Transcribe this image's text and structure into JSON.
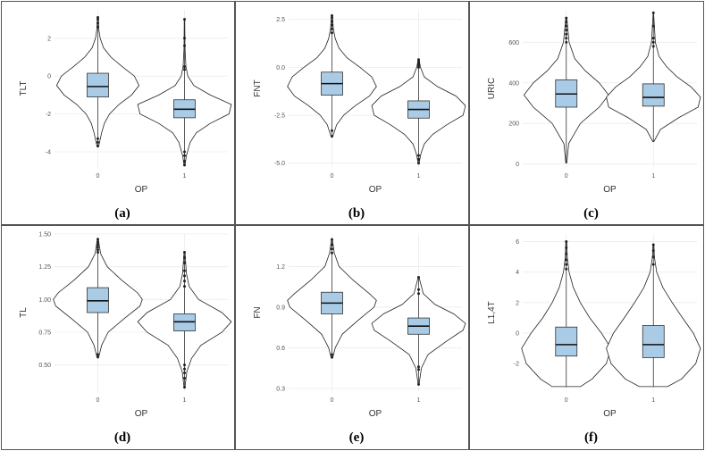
{
  "chart_data": [
    {
      "type": "violin+box",
      "panel_label": "(a)",
      "xlabel": "OP",
      "ylabel": "TLT",
      "ylim": [
        -4.8,
        3.5
      ],
      "yticks": [
        -4,
        -2,
        0,
        2
      ],
      "categories": [
        "0",
        "1"
      ],
      "groups": [
        {
          "category": "0",
          "min": -3.7,
          "q1": -1.1,
          "median": -0.55,
          "q3": 0.15,
          "max": 3.1,
          "outliers": [
            2.6,
            2.8,
            3.0,
            3.1,
            -3.3,
            -3.5,
            -3.7
          ],
          "density": [
            [
              -3.7,
              0.02
            ],
            [
              -3.0,
              0.08
            ],
            [
              -2.5,
              0.14
            ],
            [
              -2.0,
              0.25
            ],
            [
              -1.5,
              0.45
            ],
            [
              -1.0,
              0.72
            ],
            [
              -0.5,
              0.88
            ],
            [
              0.0,
              0.78
            ],
            [
              0.5,
              0.52
            ],
            [
              1.0,
              0.28
            ],
            [
              1.5,
              0.12
            ],
            [
              2.0,
              0.05
            ],
            [
              2.5,
              0.02
            ],
            [
              3.1,
              0.01
            ]
          ]
        },
        {
          "category": "1",
          "min": -4.7,
          "q1": -2.2,
          "median": -1.75,
          "q3": -1.25,
          "max": 3.0,
          "outliers": [
            3.0,
            2.0,
            1.6,
            0.5,
            0.35,
            -4.0,
            -4.2,
            -4.5,
            -4.7
          ],
          "density": [
            [
              -4.7,
              0.01
            ],
            [
              -4.2,
              0.04
            ],
            [
              -3.5,
              0.12
            ],
            [
              -3.0,
              0.25
            ],
            [
              -2.5,
              0.55
            ],
            [
              -2.0,
              0.95
            ],
            [
              -1.5,
              1.0
            ],
            [
              -1.0,
              0.55
            ],
            [
              -0.5,
              0.2
            ],
            [
              0.0,
              0.07
            ],
            [
              0.5,
              0.03
            ],
            [
              1.5,
              0.01
            ],
            [
              3.0,
              0.005
            ]
          ]
        }
      ]
    },
    {
      "type": "violin+box",
      "panel_label": "(b)",
      "xlabel": "OP",
      "ylabel": "FNT",
      "ylim": [
        -5.2,
        3.0
      ],
      "yticks": [
        2.5,
        0.0,
        -2.5,
        -5.0
      ],
      "ytick_labels": [
        "2.5",
        "0.0",
        "-2.5",
        "-5.0"
      ],
      "categories": [
        "0",
        "1"
      ],
      "groups": [
        {
          "category": "0",
          "min": -3.6,
          "q1": -1.45,
          "median": -0.85,
          "q3": -0.25,
          "max": 2.7,
          "outliers": [
            1.8,
            2.0,
            2.2,
            2.4,
            2.6,
            2.7,
            -3.3,
            -3.6
          ],
          "density": [
            [
              -3.6,
              0.02
            ],
            [
              -3.0,
              0.1
            ],
            [
              -2.5,
              0.25
            ],
            [
              -2.0,
              0.5
            ],
            [
              -1.5,
              0.8
            ],
            [
              -1.0,
              0.95
            ],
            [
              -0.5,
              0.85
            ],
            [
              0.0,
              0.6
            ],
            [
              0.5,
              0.32
            ],
            [
              1.0,
              0.15
            ],
            [
              1.5,
              0.07
            ],
            [
              2.0,
              0.03
            ],
            [
              2.7,
              0.01
            ]
          ]
        },
        {
          "category": "1",
          "min": -5.0,
          "q1": -2.65,
          "median": -2.2,
          "q3": -1.75,
          "max": 0.4,
          "outliers": [
            0.0,
            0.1,
            0.2,
            0.3,
            0.4,
            -4.6,
            -4.8,
            -5.0
          ],
          "density": [
            [
              -5.0,
              0.01
            ],
            [
              -4.5,
              0.05
            ],
            [
              -4.0,
              0.12
            ],
            [
              -3.5,
              0.3
            ],
            [
              -3.0,
              0.6
            ],
            [
              -2.5,
              0.95
            ],
            [
              -2.0,
              1.0
            ],
            [
              -1.5,
              0.8
            ],
            [
              -1.0,
              0.4
            ],
            [
              -0.5,
              0.12
            ],
            [
              0.0,
              0.04
            ],
            [
              0.4,
              0.01
            ]
          ]
        }
      ]
    },
    {
      "type": "violin+box",
      "panel_label": "(c)",
      "xlabel": "OP",
      "ylabel": "URIC",
      "ylim": [
        -15,
        760
      ],
      "yticks": [
        0,
        200,
        400,
        600
      ],
      "categories": [
        "0",
        "1"
      ],
      "groups": [
        {
          "category": "0",
          "min": 5,
          "q1": 280,
          "median": 345,
          "q3": 415,
          "max": 720,
          "outliers": [
            600,
            620,
            640,
            660,
            680,
            700,
            720
          ],
          "density": [
            [
              5,
              0.01
            ],
            [
              100,
              0.05
            ],
            [
              200,
              0.3
            ],
            [
              280,
              0.7
            ],
            [
              340,
              0.9
            ],
            [
              400,
              0.7
            ],
            [
              460,
              0.4
            ],
            [
              520,
              0.18
            ],
            [
              600,
              0.06
            ],
            [
              720,
              0.01
            ]
          ]
        },
        {
          "category": "1",
          "min": 110,
          "q1": 285,
          "median": 328,
          "q3": 395,
          "max": 745,
          "outliers": [
            580,
            600,
            620,
            680,
            745
          ],
          "density": [
            [
              110,
              0.01
            ],
            [
              170,
              0.15
            ],
            [
              230,
              0.55
            ],
            [
              280,
              0.95
            ],
            [
              330,
              1.0
            ],
            [
              380,
              0.8
            ],
            [
              430,
              0.5
            ],
            [
              480,
              0.28
            ],
            [
              530,
              0.12
            ],
            [
              600,
              0.04
            ],
            [
              745,
              0.005
            ]
          ]
        }
      ]
    },
    {
      "type": "violin+box",
      "panel_label": "(d)",
      "xlabel": "OP",
      "ylabel": "TL",
      "ylim": [
        0.3,
        1.5
      ],
      "yticks": [
        0.5,
        0.75,
        1.0,
        1.25,
        1.5
      ],
      "ytick_labels": [
        "0.50",
        "0.75",
        "1.00",
        "1.25",
        "1.50"
      ],
      "categories": [
        "0",
        "1"
      ],
      "groups": [
        {
          "category": "0",
          "min": 0.56,
          "q1": 0.9,
          "median": 0.99,
          "q3": 1.09,
          "max": 1.46,
          "outliers": [
            1.36,
            1.38,
            1.4,
            1.42,
            1.44,
            1.46,
            0.56,
            0.58
          ],
          "density": [
            [
              0.56,
              0.02
            ],
            [
              0.65,
              0.08
            ],
            [
              0.75,
              0.22
            ],
            [
              0.85,
              0.55
            ],
            [
              0.95,
              0.9
            ],
            [
              1.0,
              0.95
            ],
            [
              1.05,
              0.85
            ],
            [
              1.15,
              0.5
            ],
            [
              1.25,
              0.2
            ],
            [
              1.35,
              0.06
            ],
            [
              1.46,
              0.01
            ]
          ]
        },
        {
          "category": "1",
          "min": 0.33,
          "q1": 0.76,
          "median": 0.83,
          "q3": 0.89,
          "max": 1.36,
          "outliers": [
            1.1,
            1.14,
            1.18,
            1.22,
            1.28,
            1.32,
            1.36,
            0.5,
            0.47,
            0.44,
            0.4,
            0.33
          ],
          "density": [
            [
              0.33,
              0.01
            ],
            [
              0.45,
              0.05
            ],
            [
              0.55,
              0.15
            ],
            [
              0.65,
              0.35
            ],
            [
              0.75,
              0.8
            ],
            [
              0.83,
              1.0
            ],
            [
              0.9,
              0.8
            ],
            [
              1.0,
              0.3
            ],
            [
              1.1,
              0.1
            ],
            [
              1.2,
              0.04
            ],
            [
              1.36,
              0.01
            ]
          ]
        }
      ]
    },
    {
      "type": "violin+box",
      "panel_label": "(e)",
      "xlabel": "OP",
      "ylabel": "FN",
      "ylim": [
        0.28,
        1.44
      ],
      "yticks": [
        0.3,
        0.6,
        0.9,
        1.2
      ],
      "ytick_labels": [
        "0.3",
        "0.6",
        "0.9",
        "1.2"
      ],
      "categories": [
        "0",
        "1"
      ],
      "groups": [
        {
          "category": "0",
          "min": 0.53,
          "q1": 0.85,
          "median": 0.93,
          "q3": 1.01,
          "max": 1.4,
          "outliers": [
            1.3,
            1.33,
            1.36,
            1.4,
            0.55,
            0.53
          ],
          "density": [
            [
              0.53,
              0.02
            ],
            [
              0.6,
              0.07
            ],
            [
              0.7,
              0.22
            ],
            [
              0.8,
              0.55
            ],
            [
              0.9,
              0.9
            ],
            [
              0.95,
              0.95
            ],
            [
              1.0,
              0.8
            ],
            [
              1.1,
              0.45
            ],
            [
              1.2,
              0.15
            ],
            [
              1.3,
              0.05
            ],
            [
              1.4,
              0.01
            ]
          ]
        },
        {
          "category": "1",
          "min": 0.33,
          "q1": 0.7,
          "median": 0.76,
          "q3": 0.82,
          "max": 1.12,
          "outliers": [
            1.0,
            1.03,
            1.12,
            0.46,
            0.44,
            0.33
          ],
          "density": [
            [
              0.33,
              0.01
            ],
            [
              0.45,
              0.06
            ],
            [
              0.55,
              0.2
            ],
            [
              0.65,
              0.6
            ],
            [
              0.73,
              0.95
            ],
            [
              0.78,
              1.0
            ],
            [
              0.85,
              0.75
            ],
            [
              0.92,
              0.35
            ],
            [
              1.0,
              0.1
            ],
            [
              1.12,
              0.01
            ]
          ]
        }
      ]
    },
    {
      "type": "violin+box",
      "panel_label": "(f)",
      "xlabel": "OP",
      "ylabel": "L1,4T",
      "ylim": [
        -3.8,
        6.5
      ],
      "yticks": [
        -2,
        0,
        2,
        4,
        6
      ],
      "categories": [
        "0",
        "1"
      ],
      "groups": [
        {
          "category": "0",
          "min": -3.5,
          "q1": -1.5,
          "median": -0.75,
          "q3": 0.4,
          "max": 6.0,
          "outliers": [
            4.2,
            4.5,
            4.8,
            5.2,
            5.6,
            6.0
          ],
          "density": [
            [
              -3.5,
              0.3
            ],
            [
              -3.0,
              0.55
            ],
            [
              -2.0,
              0.85
            ],
            [
              -1.0,
              0.95
            ],
            [
              0.0,
              0.75
            ],
            [
              1.0,
              0.5
            ],
            [
              2.0,
              0.3
            ],
            [
              3.0,
              0.15
            ],
            [
              4.0,
              0.06
            ],
            [
              5.0,
              0.02
            ],
            [
              6.0,
              0.01
            ]
          ]
        },
        {
          "category": "1",
          "min": -3.5,
          "q1": -1.6,
          "median": -0.75,
          "q3": 0.5,
          "max": 5.8,
          "outliers": [
            4.5,
            5.0,
            5.4,
            5.8
          ],
          "density": [
            [
              -3.5,
              0.3
            ],
            [
              -3.0,
              0.6
            ],
            [
              -2.0,
              0.9
            ],
            [
              -1.0,
              1.0
            ],
            [
              0.0,
              0.85
            ],
            [
              1.0,
              0.62
            ],
            [
              2.0,
              0.4
            ],
            [
              3.0,
              0.2
            ],
            [
              4.0,
              0.07
            ],
            [
              5.0,
              0.02
            ],
            [
              5.8,
              0.01
            ]
          ]
        }
      ]
    }
  ],
  "colors": {
    "box_fill": "#a9cbe6",
    "box_stroke": "#333333",
    "violin_stroke": "#222222",
    "grid": "#ebebeb",
    "panel_border": "#555555"
  }
}
